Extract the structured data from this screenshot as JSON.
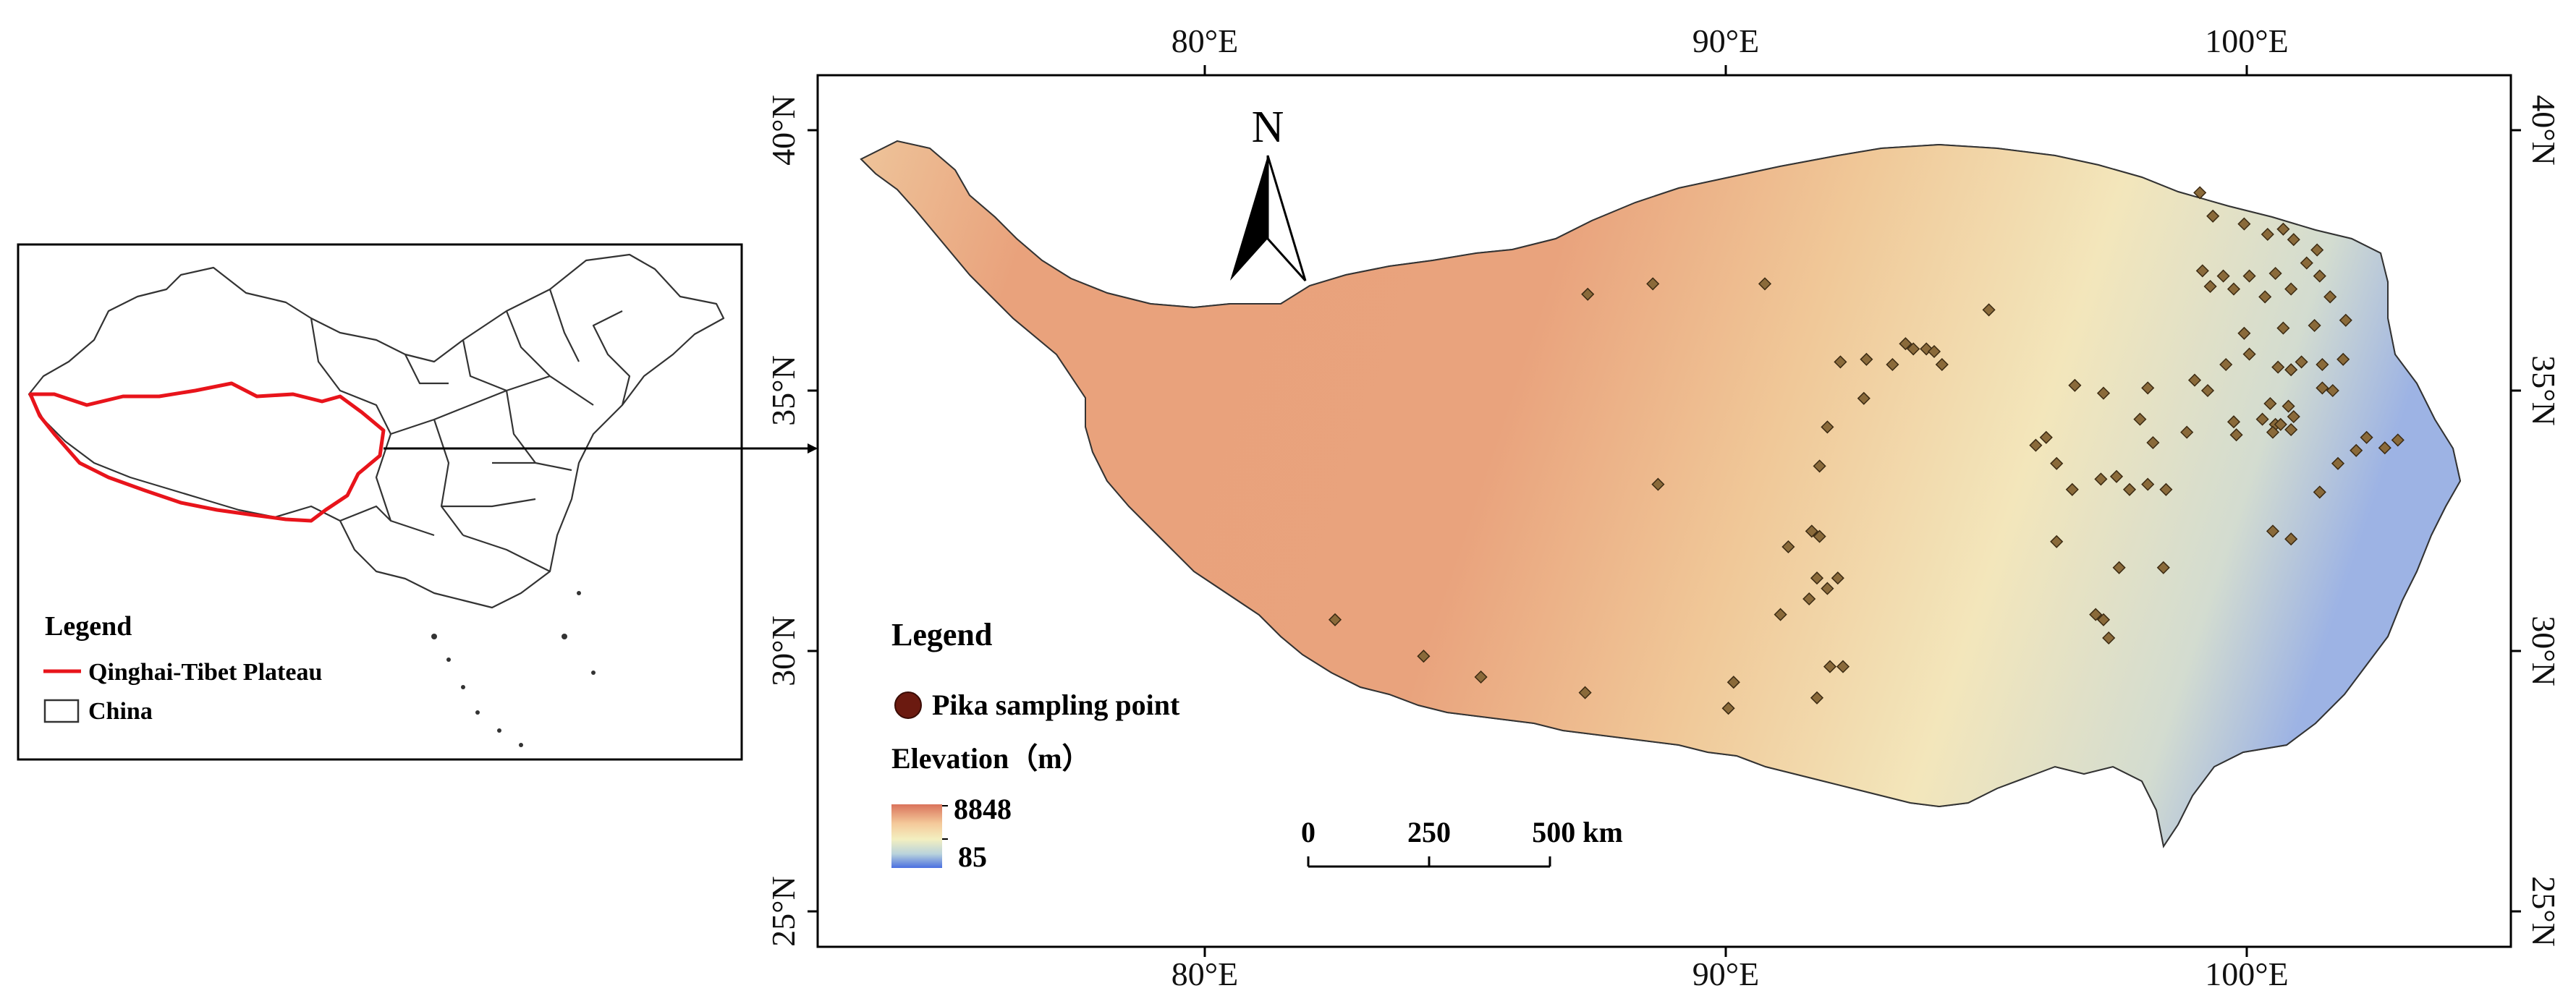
{
  "inset": {
    "legend_title": "Legend",
    "items": [
      {
        "label": "Qinghai-Tibet Plateau",
        "color": "#e8141b",
        "symbol": "line"
      },
      {
        "label": "China",
        "color": "#333333",
        "symbol": "box"
      }
    ]
  },
  "main_map": {
    "axes": {
      "x_ticks": [
        "80°E",
        "90°E",
        "100°E"
      ],
      "y_ticks": [
        "40°N",
        "35°N",
        "30°N",
        "25°N"
      ]
    },
    "north_arrow": "N",
    "legend": {
      "title": "Legend",
      "point_label": "Pika sampling point",
      "point_color": "#6b1a10",
      "elevation_title": "Elevation（m）",
      "elevation_max": "8848",
      "elevation_min": "85",
      "ramp_colors": [
        "#d9735b",
        "#f4c99a",
        "#f3efc0",
        "#b9d3dc",
        "#4a6fe0"
      ]
    },
    "scale_bar": {
      "labels": [
        "0",
        "250",
        "500 km"
      ]
    },
    "colors": {
      "plateau_high": "#e8a07a",
      "plateau_mid": "#f2cfa0",
      "plateau_low": "#f3ecc2",
      "basin_blue": "#8ea4e8",
      "deep_blue": "#3d63dd",
      "sample_marker": "#8a6a3a"
    },
    "sampling_points": [
      [
        87.35,
        36.85
      ],
      [
        88.6,
        37.05
      ],
      [
        90.75,
        37.05
      ],
      [
        92.7,
        35.6
      ],
      [
        93.2,
        35.5
      ],
      [
        93.6,
        35.8
      ],
      [
        93.85,
        35.8
      ],
      [
        94.0,
        35.75
      ],
      [
        94.15,
        35.5
      ],
      [
        93.45,
        35.9
      ],
      [
        92.2,
        35.55
      ],
      [
        91.95,
        34.3
      ],
      [
        91.8,
        33.55
      ],
      [
        92.65,
        34.85
      ],
      [
        88.7,
        33.2
      ],
      [
        91.65,
        32.3
      ],
      [
        91.8,
        32.2
      ],
      [
        91.2,
        32.0
      ],
      [
        91.75,
        31.4
      ],
      [
        92.15,
        31.4
      ],
      [
        91.95,
        31.2
      ],
      [
        91.6,
        31.0
      ],
      [
        91.05,
        30.7
      ],
      [
        92.0,
        29.7
      ],
      [
        92.25,
        29.7
      ],
      [
        91.75,
        29.1
      ],
      [
        90.15,
        29.4
      ],
      [
        90.05,
        28.9
      ],
      [
        87.3,
        29.2
      ],
      [
        85.3,
        29.5
      ],
      [
        84.2,
        29.9
      ],
      [
        82.5,
        30.6
      ],
      [
        95.05,
        36.55
      ],
      [
        96.7,
        35.1
      ],
      [
        97.25,
        34.95
      ],
      [
        98.1,
        35.05
      ],
      [
        99.1,
        38.8
      ],
      [
        99.35,
        38.35
      ],
      [
        99.95,
        38.2
      ],
      [
        100.4,
        38.0
      ],
      [
        100.7,
        38.1
      ],
      [
        100.9,
        37.9
      ],
      [
        101.35,
        37.7
      ],
      [
        101.15,
        37.45
      ],
      [
        101.4,
        37.2
      ],
      [
        100.55,
        37.25
      ],
      [
        100.05,
        37.2
      ],
      [
        99.55,
        37.2
      ],
      [
        99.15,
        37.3
      ],
      [
        99.3,
        37.0
      ],
      [
        99.75,
        36.95
      ],
      [
        100.35,
        36.8
      ],
      [
        100.85,
        36.95
      ],
      [
        101.6,
        36.8
      ],
      [
        101.9,
        36.35
      ],
      [
        101.3,
        36.25
      ],
      [
        100.7,
        36.2
      ],
      [
        99.95,
        36.1
      ],
      [
        99.6,
        35.5
      ],
      [
        100.05,
        35.7
      ],
      [
        100.6,
        35.45
      ],
      [
        100.85,
        35.4
      ],
      [
        101.05,
        35.55
      ],
      [
        101.45,
        35.5
      ],
      [
        101.85,
        35.6
      ],
      [
        101.45,
        35.05
      ],
      [
        101.65,
        35.0
      ],
      [
        100.45,
        34.75
      ],
      [
        100.3,
        34.45
      ],
      [
        100.55,
        34.35
      ],
      [
        100.65,
        34.35
      ],
      [
        100.85,
        34.25
      ],
      [
        100.5,
        34.2
      ],
      [
        100.9,
        34.5
      ],
      [
        99.75,
        34.4
      ],
      [
        98.2,
        34.0
      ],
      [
        97.95,
        34.45
      ],
      [
        99.0,
        35.2
      ],
      [
        99.25,
        35.0
      ],
      [
        98.85,
        34.2
      ],
      [
        99.8,
        34.15
      ],
      [
        100.8,
        34.7
      ],
      [
        102.3,
        34.1
      ],
      [
        102.65,
        33.9
      ],
      [
        102.9,
        34.05
      ],
      [
        102.1,
        33.85
      ],
      [
        101.75,
        33.6
      ],
      [
        101.4,
        33.05
      ],
      [
        100.5,
        32.3
      ],
      [
        100.85,
        32.15
      ],
      [
        96.15,
        34.1
      ],
      [
        95.95,
        33.95
      ],
      [
        96.35,
        33.6
      ],
      [
        97.2,
        33.3
      ],
      [
        97.5,
        33.35
      ],
      [
        97.75,
        33.1
      ],
      [
        98.1,
        33.2
      ],
      [
        98.45,
        33.1
      ],
      [
        96.65,
        33.1
      ],
      [
        96.35,
        32.1
      ],
      [
        97.55,
        31.6
      ],
      [
        97.1,
        30.7
      ],
      [
        97.25,
        30.6
      ],
      [
        97.35,
        30.25
      ],
      [
        98.4,
        31.6
      ]
    ]
  }
}
